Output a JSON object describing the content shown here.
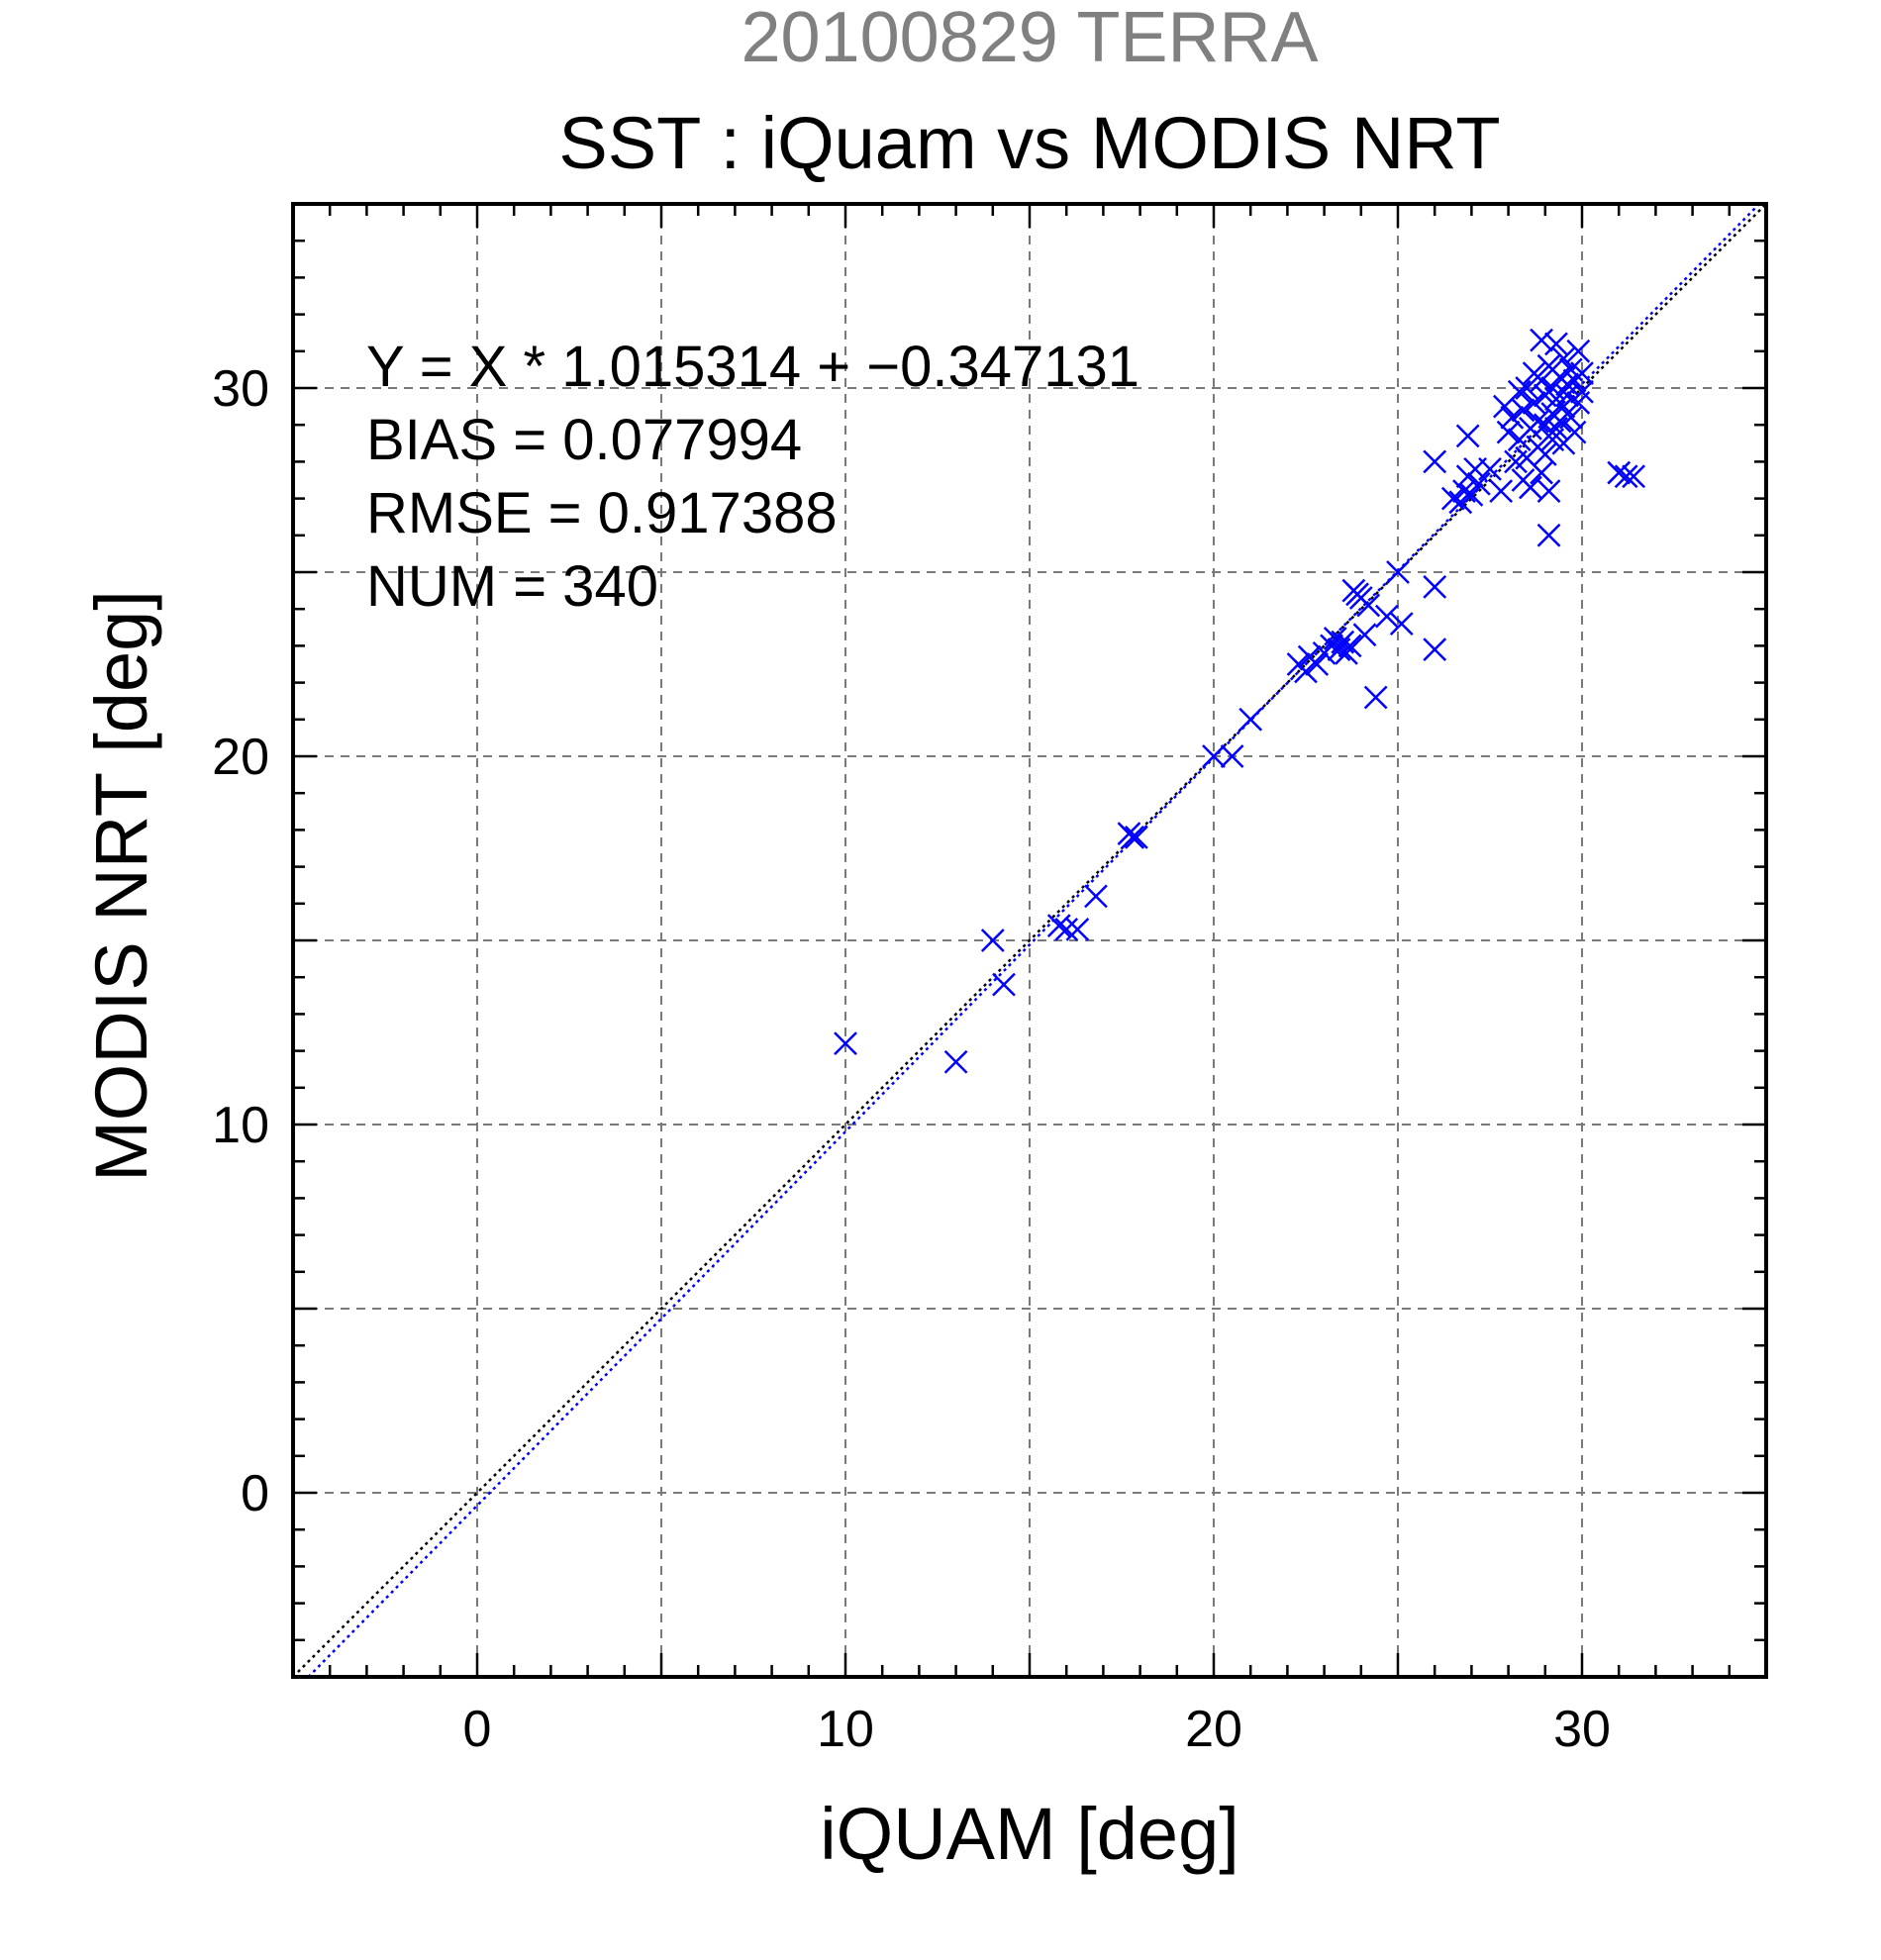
{
  "page_title": "20100829 TERRA",
  "chart_data": {
    "type": "scatter",
    "title": "SST : iQuam vs MODIS NRT",
    "supertitle": "20100829 TERRA",
    "xlabel": "iQUAM [deg]",
    "ylabel": "MODIS NRT [deg]",
    "xlim": [
      -5,
      35
    ],
    "ylim": [
      -5,
      35
    ],
    "xticks": [
      0,
      10,
      20,
      30
    ],
    "yticks": [
      0,
      10,
      20,
      30
    ],
    "grid": true,
    "annotations": [
      "Y = X * 1.015314 + −0.347131",
      "BIAS = 0.077994",
      "RMSE = 0.917388",
      "NUM = 340"
    ],
    "lines": [
      {
        "kind": "identity",
        "slope": 1,
        "intercept": 0,
        "color": "#000000",
        "style": "dotted"
      },
      {
        "kind": "regression",
        "slope": 1.015314,
        "intercept": -0.347131,
        "color": "#0000ff",
        "style": "dotted"
      }
    ],
    "marker": "x",
    "marker_color": "#0000ff",
    "series": [
      {
        "points": [
          [
            10.0,
            12.2
          ],
          [
            13.0,
            11.7
          ],
          [
            14.0,
            15.0
          ],
          [
            14.3,
            13.8
          ],
          [
            15.8,
            15.4
          ],
          [
            16.0,
            15.3
          ],
          [
            16.3,
            15.3
          ],
          [
            16.8,
            16.2
          ],
          [
            17.7,
            17.9
          ],
          [
            17.8,
            17.8
          ],
          [
            17.9,
            17.8
          ],
          [
            20.0,
            20.0
          ],
          [
            20.5,
            20.0
          ],
          [
            21.0,
            21.0
          ],
          [
            22.3,
            22.5
          ],
          [
            22.5,
            22.3
          ],
          [
            22.6,
            22.7
          ],
          [
            22.8,
            22.5
          ],
          [
            23.0,
            22.8
          ],
          [
            23.2,
            23.0
          ],
          [
            23.3,
            23.2
          ],
          [
            23.4,
            22.9
          ],
          [
            23.5,
            23.1
          ],
          [
            23.6,
            22.8
          ],
          [
            23.7,
            23.0
          ],
          [
            23.8,
            24.5
          ],
          [
            23.9,
            24.4
          ],
          [
            24.0,
            24.3
          ],
          [
            24.1,
            23.3
          ],
          [
            24.2,
            24.1
          ],
          [
            24.4,
            21.6
          ],
          [
            24.7,
            23.8
          ],
          [
            25.0,
            25.0
          ],
          [
            25.1,
            23.6
          ],
          [
            26.0,
            28.0
          ],
          [
            26.0,
            24.6
          ],
          [
            26.0,
            22.9
          ],
          [
            26.5,
            27.0
          ],
          [
            26.7,
            26.9
          ],
          [
            26.8,
            27.2
          ],
          [
            26.9,
            28.7
          ],
          [
            26.9,
            27.6
          ],
          [
            27.0,
            27.1
          ],
          [
            27.1,
            27.8
          ],
          [
            27.2,
            27.4
          ],
          [
            27.5,
            27.8
          ],
          [
            27.8,
            27.2
          ],
          [
            27.9,
            29.5
          ],
          [
            28.0,
            28.8
          ],
          [
            28.1,
            29.2
          ],
          [
            28.2,
            28.0
          ],
          [
            28.3,
            28.6
          ],
          [
            28.3,
            29.9
          ],
          [
            28.4,
            27.5
          ],
          [
            28.4,
            29.4
          ],
          [
            28.5,
            28.1
          ],
          [
            28.5,
            30.0
          ],
          [
            28.6,
            28.9
          ],
          [
            28.6,
            27.3
          ],
          [
            28.7,
            29.6
          ],
          [
            28.7,
            30.4
          ],
          [
            28.8,
            28.4
          ],
          [
            28.8,
            29.1
          ],
          [
            28.9,
            27.7
          ],
          [
            28.9,
            30.2
          ],
          [
            28.9,
            31.3
          ],
          [
            29.0,
            29.0
          ],
          [
            29.0,
            28.2
          ],
          [
            29.0,
            29.8
          ],
          [
            29.1,
            30.6
          ],
          [
            29.1,
            27.2
          ],
          [
            29.1,
            26.0
          ],
          [
            29.2,
            29.3
          ],
          [
            29.2,
            28.6
          ],
          [
            29.2,
            30.0
          ],
          [
            29.3,
            29.7
          ],
          [
            29.3,
            28.9
          ],
          [
            29.3,
            31.2
          ],
          [
            29.4,
            30.3
          ],
          [
            29.4,
            29.1
          ],
          [
            29.5,
            29.5
          ],
          [
            29.5,
            30.8
          ],
          [
            29.5,
            28.5
          ],
          [
            29.6,
            30.1
          ],
          [
            29.6,
            29.8
          ],
          [
            29.7,
            30.5
          ],
          [
            29.7,
            29.2
          ],
          [
            29.8,
            30.2
          ],
          [
            29.8,
            28.8
          ],
          [
            29.9,
            31.0
          ],
          [
            29.9,
            29.6
          ],
          [
            30.0,
            29.9
          ],
          [
            30.0,
            30.4
          ],
          [
            31.0,
            27.7
          ],
          [
            31.2,
            27.6
          ],
          [
            31.4,
            27.6
          ]
        ]
      }
    ]
  }
}
